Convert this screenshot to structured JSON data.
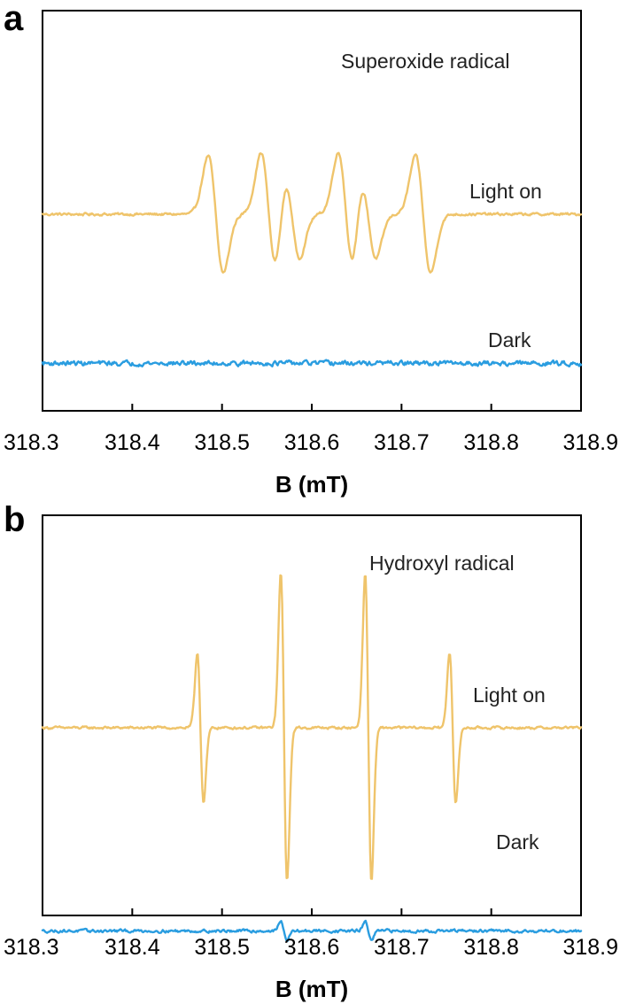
{
  "colors": {
    "light_on": "#EFC46B",
    "dark": "#2A9DE0"
  },
  "chart_data": [
    {
      "type": "line",
      "panel_label": "a",
      "title": "Superoxide radical",
      "xlabel": "B (mT)",
      "ylabel": "",
      "xlim": [
        318.3,
        318.9
      ],
      "xticks": [
        "318.3",
        "318.4",
        "318.5",
        "318.6",
        "318.7",
        "318.8",
        "318.9"
      ],
      "grid": false,
      "y_ticks_shown": false,
      "series": [
        {
          "name": "Light on",
          "color": "#EFC46B",
          "baseline": 0,
          "noise": 0.04,
          "signal": {
            "shape": "derivative",
            "width": 0.0085,
            "peaks": [
              {
                "center": 318.493,
                "amplitude": 1.0
              },
              {
                "center": 318.552,
                "amplitude": 1.05
              },
              {
                "center": 318.578,
                "amplitude": 0.75
              },
              {
                "center": 318.638,
                "amplitude": 1.05
              },
              {
                "center": 318.663,
                "amplitude": 0.75
              },
              {
                "center": 318.724,
                "amplitude": 1.0
              }
            ]
          }
        },
        {
          "name": "Dark",
          "color": "#2A9DE0",
          "baseline": -2.55,
          "noise": 0.07,
          "signal": {
            "shape": "flat",
            "peaks": []
          }
        }
      ]
    },
    {
      "type": "line",
      "panel_label": "b",
      "title": "Hydroxyl radical",
      "xlabel": "B (mT)",
      "ylabel": "",
      "xlim": [
        318.3,
        318.9
      ],
      "xticks": [
        "318.3",
        "318.4",
        "318.5",
        "318.6",
        "318.7",
        "318.8",
        "318.9"
      ],
      "grid": false,
      "y_ticks_shown": false,
      "series": [
        {
          "name": "Light on",
          "color": "#EFC46B",
          "baseline": 0,
          "noise": 0.03,
          "signal": {
            "shape": "derivative",
            "width": 0.0035,
            "peaks": [
              {
                "center": 318.476,
                "amplitude": 1.0
              },
              {
                "center": 318.569,
                "amplitude": 2.05
              },
              {
                "center": 318.663,
                "amplitude": 2.05
              },
              {
                "center": 318.757,
                "amplitude": 1.0
              }
            ]
          }
        },
        {
          "name": "Dark",
          "color": "#2A9DE0",
          "baseline": -2.7,
          "noise": 0.035,
          "signal": {
            "shape": "derivative",
            "width": 0.0035,
            "peaks": [
              {
                "center": 318.569,
                "amplitude": 0.12
              },
              {
                "center": 318.663,
                "amplitude": 0.12
              }
            ]
          }
        }
      ]
    }
  ]
}
